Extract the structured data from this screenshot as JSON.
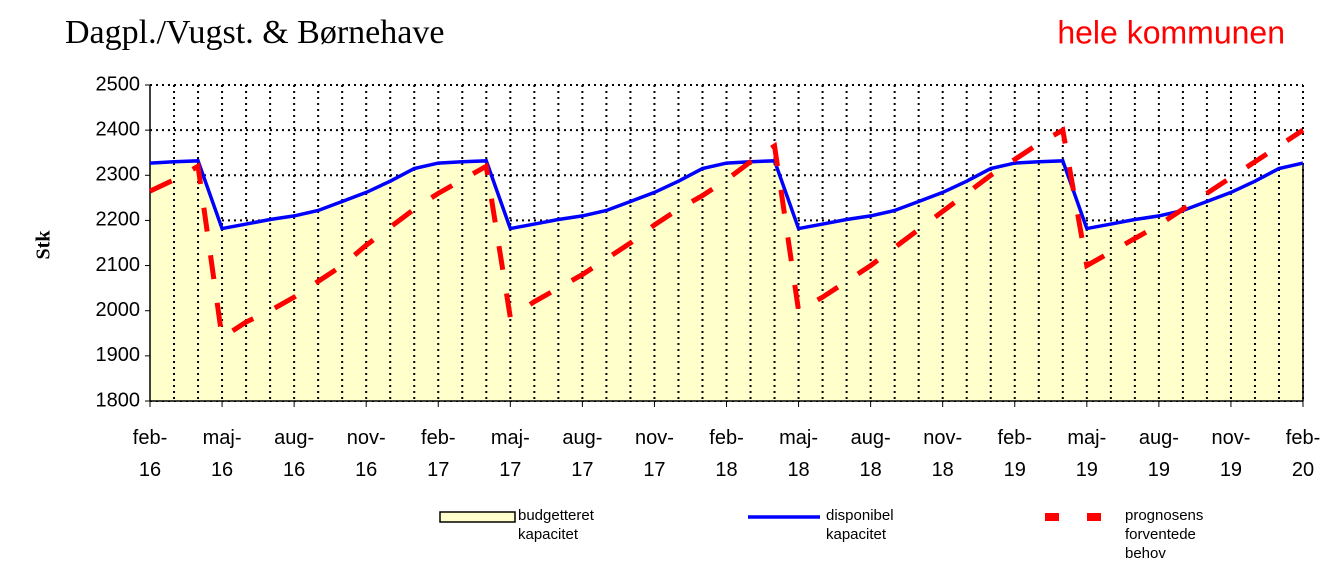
{
  "chart_data": {
    "type": "line",
    "title": "Dagpl./Vugst. & Børnehave",
    "subtitle": "hele kommunen",
    "y_label": "Stk",
    "categories": [
      "feb-16",
      null,
      null,
      "maj-16",
      null,
      null,
      "aug-16",
      null,
      null,
      "nov-16",
      null,
      null,
      "feb-17",
      null,
      null,
      "maj-17",
      null,
      null,
      "aug-17",
      null,
      null,
      "nov-17",
      null,
      null,
      "feb-18",
      null,
      null,
      "maj-18",
      null,
      null,
      "aug-18",
      null,
      null,
      "nov-18",
      null,
      null,
      "feb-19",
      null,
      null,
      "maj-19",
      null,
      null,
      "aug-19",
      null,
      null,
      "nov-19",
      null,
      null,
      "feb-20"
    ],
    "series": [
      {
        "name": "budgetteret kapacitet",
        "style": "area",
        "color": "#ffffcc",
        "values": [
          2327,
          2330,
          2332,
          2182,
          2192,
          2202,
          2210,
          2222,
          2242,
          2262,
          2287,
          2315,
          2327,
          2330,
          2332,
          2182,
          2192,
          2202,
          2210,
          2222,
          2242,
          2262,
          2287,
          2315,
          2327,
          2330,
          2332,
          2182,
          2192,
          2202,
          2210,
          2222,
          2242,
          2262,
          2287,
          2315,
          2327,
          2330,
          2332,
          2182,
          2192,
          2202,
          2210,
          2222,
          2242,
          2262,
          2287,
          2315,
          2327
        ]
      },
      {
        "name": "disponibel kapacitet",
        "style": "line",
        "color": "#0000ff",
        "values": [
          2327,
          2330,
          2332,
          2182,
          2192,
          2202,
          2210,
          2222,
          2242,
          2262,
          2287,
          2315,
          2327,
          2330,
          2332,
          2182,
          2192,
          2202,
          2210,
          2222,
          2242,
          2262,
          2287,
          2315,
          2327,
          2330,
          2332,
          2182,
          2192,
          2202,
          2210,
          2222,
          2242,
          2262,
          2287,
          2315,
          2327,
          2330,
          2332,
          2182,
          2192,
          2202,
          2210,
          2222,
          2242,
          2262,
          2287,
          2315,
          2327
        ]
      },
      {
        "name": "prognosens forventede behov",
        "style": "dashed",
        "color": "#ff0000",
        "values": [
          2265,
          2290,
          2320,
          1940,
          1975,
          2000,
          2030,
          2065,
          2100,
          2145,
          2185,
          2225,
          2260,
          2290,
          2320,
          1985,
          2020,
          2050,
          2080,
          2115,
          2150,
          2190,
          2225,
          2255,
          2290,
          2330,
          2365,
          2000,
          2030,
          2065,
          2100,
          2140,
          2180,
          2220,
          2260,
          2300,
          2335,
          2370,
          2400,
          2100,
          2130,
          2160,
          2190,
          2225,
          2260,
          2295,
          2330,
          2365,
          2400
        ]
      }
    ],
    "ylim": [
      1800,
      2500
    ],
    "yticks": [
      1800,
      1900,
      2000,
      2100,
      2200,
      2300,
      2400,
      2500
    ],
    "grid": true
  }
}
